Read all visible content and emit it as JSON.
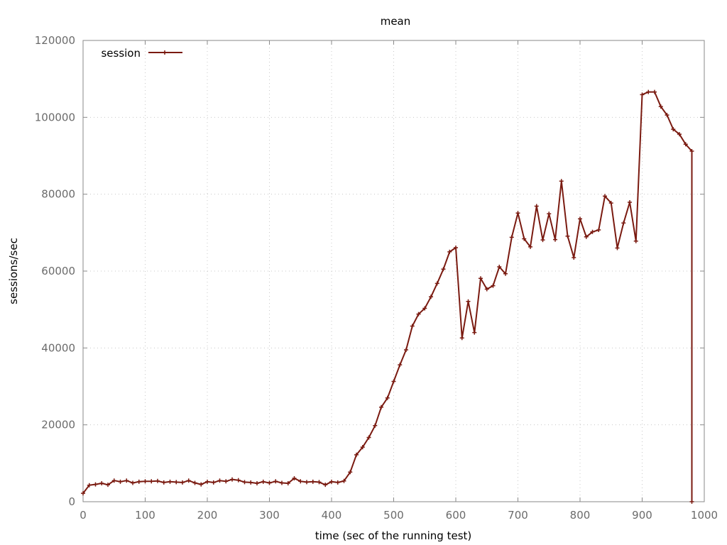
{
  "chart_data": {
    "type": "line",
    "title": "mean",
    "xlabel": "time (sec of the running test)",
    "ylabel": "sessions/sec",
    "xlim": [
      0,
      1000
    ],
    "ylim": [
      0,
      120000
    ],
    "x_ticks": [
      "0",
      "100",
      "200",
      "300",
      "400",
      "500",
      "600",
      "700",
      "800",
      "900",
      "1000"
    ],
    "y_ticks": [
      "0",
      "20000",
      "40000",
      "60000",
      "80000",
      "100000",
      "120000"
    ],
    "grid": true,
    "legend_position": "top-left",
    "series": [
      {
        "name": "session",
        "color": "#7a1a10",
        "marker": "plus",
        "x": [
          0,
          10,
          20,
          30,
          40,
          50,
          60,
          70,
          80,
          90,
          100,
          110,
          120,
          130,
          140,
          150,
          160,
          170,
          180,
          190,
          200,
          210,
          220,
          230,
          240,
          250,
          260,
          270,
          280,
          290,
          300,
          310,
          320,
          330,
          340,
          350,
          360,
          370,
          380,
          390,
          400,
          410,
          420,
          430,
          440,
          450,
          460,
          470,
          480,
          490,
          500,
          510,
          520,
          530,
          540,
          550,
          560,
          570,
          580,
          590,
          600,
          610,
          620,
          630,
          640,
          650,
          660,
          670,
          680,
          690,
          700,
          710,
          720,
          730,
          740,
          750,
          760,
          770,
          780,
          790,
          800,
          810,
          820,
          830,
          840,
          850,
          860,
          870,
          880,
          890,
          900,
          910,
          920,
          930,
          940,
          950,
          960,
          970,
          980,
          980
        ],
        "values": [
          2200,
          4300,
          4500,
          4800,
          4400,
          5500,
          5200,
          5500,
          4900,
          5200,
          5300,
          5300,
          5400,
          5000,
          5200,
          5100,
          5000,
          5500,
          4900,
          4500,
          5200,
          5000,
          5500,
          5300,
          5800,
          5600,
          5100,
          5000,
          4800,
          5200,
          4900,
          5300,
          4900,
          4800,
          6100,
          5300,
          5100,
          5200,
          5100,
          4400,
          5200,
          5000,
          5400,
          7700,
          12200,
          14200,
          16700,
          19800,
          24600,
          27000,
          31300,
          35600,
          39500,
          45700,
          48800,
          50300,
          53300,
          56800,
          60500,
          65000,
          66100,
          42600,
          52100,
          44000,
          58100,
          55300,
          56200,
          61100,
          59300,
          68800,
          75100,
          68400,
          66300,
          76900,
          68100,
          74900,
          68200,
          83400,
          69100,
          63500,
          73600,
          68900,
          70200,
          70700,
          79500,
          77700,
          66000,
          72500,
          77900,
          67800,
          105900,
          106600,
          106600,
          102800,
          100600,
          96900,
          95600,
          93000,
          91200,
          0
        ]
      }
    ]
  }
}
